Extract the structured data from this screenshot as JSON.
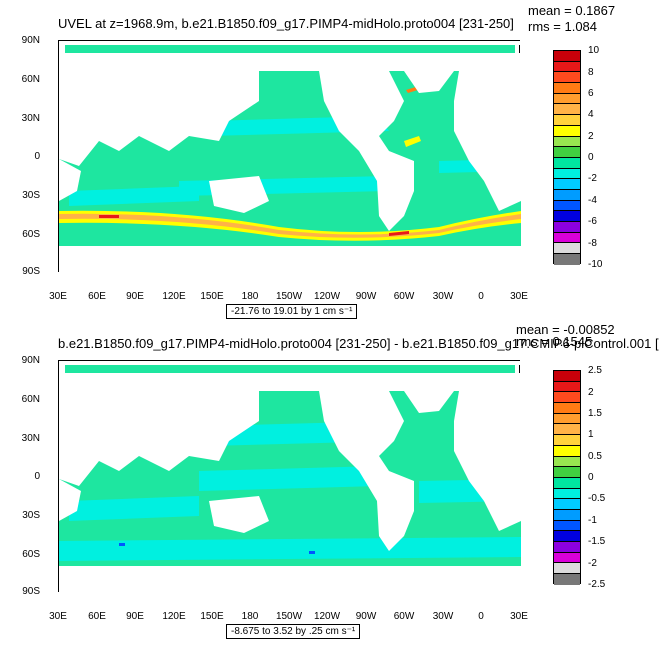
{
  "chart_data": [
    {
      "type": "heatmap",
      "title": "UVEL at z=1968.9m, b.e21.B1850.f09_g17.PIMP4-midHolo.proto004 [231-250]",
      "mean_label": "mean = 0.1867",
      "rms_label": "rms = 1.084",
      "range_label": "-21.76 to 19.01 by 1 cm s⁻¹",
      "lat_ticks": [
        "90N",
        "60N",
        "30N",
        "0",
        "30S",
        "60S",
        "90S"
      ],
      "lon_ticks": [
        "30E",
        "60E",
        "90E",
        "120E",
        "150E",
        "180",
        "150W",
        "120W",
        "90W",
        "60W",
        "30W",
        "0",
        "30E"
      ],
      "colorbar_labels": [
        "10",
        "8",
        "6",
        "4",
        "2",
        "0",
        "-2",
        "-4",
        "-6",
        "-8",
        "-10"
      ],
      "colors": [
        "#c8000a",
        "#e81818",
        "#ff4a1e",
        "#ff7b14",
        "#ff9d2e",
        "#ffb347",
        "#ffd23c",
        "#ffff00",
        "#98e650",
        "#41d041",
        "#00e6a0",
        "#00f0e0",
        "#00ccff",
        "#009cff",
        "#0056ff",
        "#0000e0",
        "#8c00e0",
        "#d900d9",
        "#dcdcdc",
        "#787878"
      ],
      "ocean_base_color": "#1ee6a0"
    },
    {
      "type": "heatmap",
      "title": "b.e21.B1850.f09_g17.PIMP4-midHolo.proto004 [231-250] - b.e21.B1850.f09_g17.CMIP6-piControl.001 [",
      "mean_label": "mean = -0.00852",
      "rms_label": "rms = 0.1545",
      "range_label": "-8.675 to 3.52 by .25 cm s⁻¹",
      "lat_ticks": [
        "90N",
        "60N",
        "30N",
        "0",
        "30S",
        "60S",
        "90S"
      ],
      "lon_ticks": [
        "30E",
        "60E",
        "90E",
        "120E",
        "150E",
        "180",
        "150W",
        "120W",
        "90W",
        "60W",
        "30W",
        "0",
        "30E"
      ],
      "colorbar_labels": [
        "2.5",
        "2",
        "1.5",
        "1",
        "0.5",
        "0",
        "-0.5",
        "-1",
        "-1.5",
        "-2",
        "-2.5"
      ],
      "colors": [
        "#c8000a",
        "#e81818",
        "#ff4a1e",
        "#ff7b14",
        "#ff9d2e",
        "#ffb347",
        "#ffd23c",
        "#ffff00",
        "#98e650",
        "#41d041",
        "#00e6a0",
        "#00f0e0",
        "#00ccff",
        "#009cff",
        "#0056ff",
        "#0000e0",
        "#8c00e0",
        "#d900d9",
        "#dcdcdc",
        "#787878"
      ],
      "ocean_base_color": "#1ee6a0"
    }
  ]
}
